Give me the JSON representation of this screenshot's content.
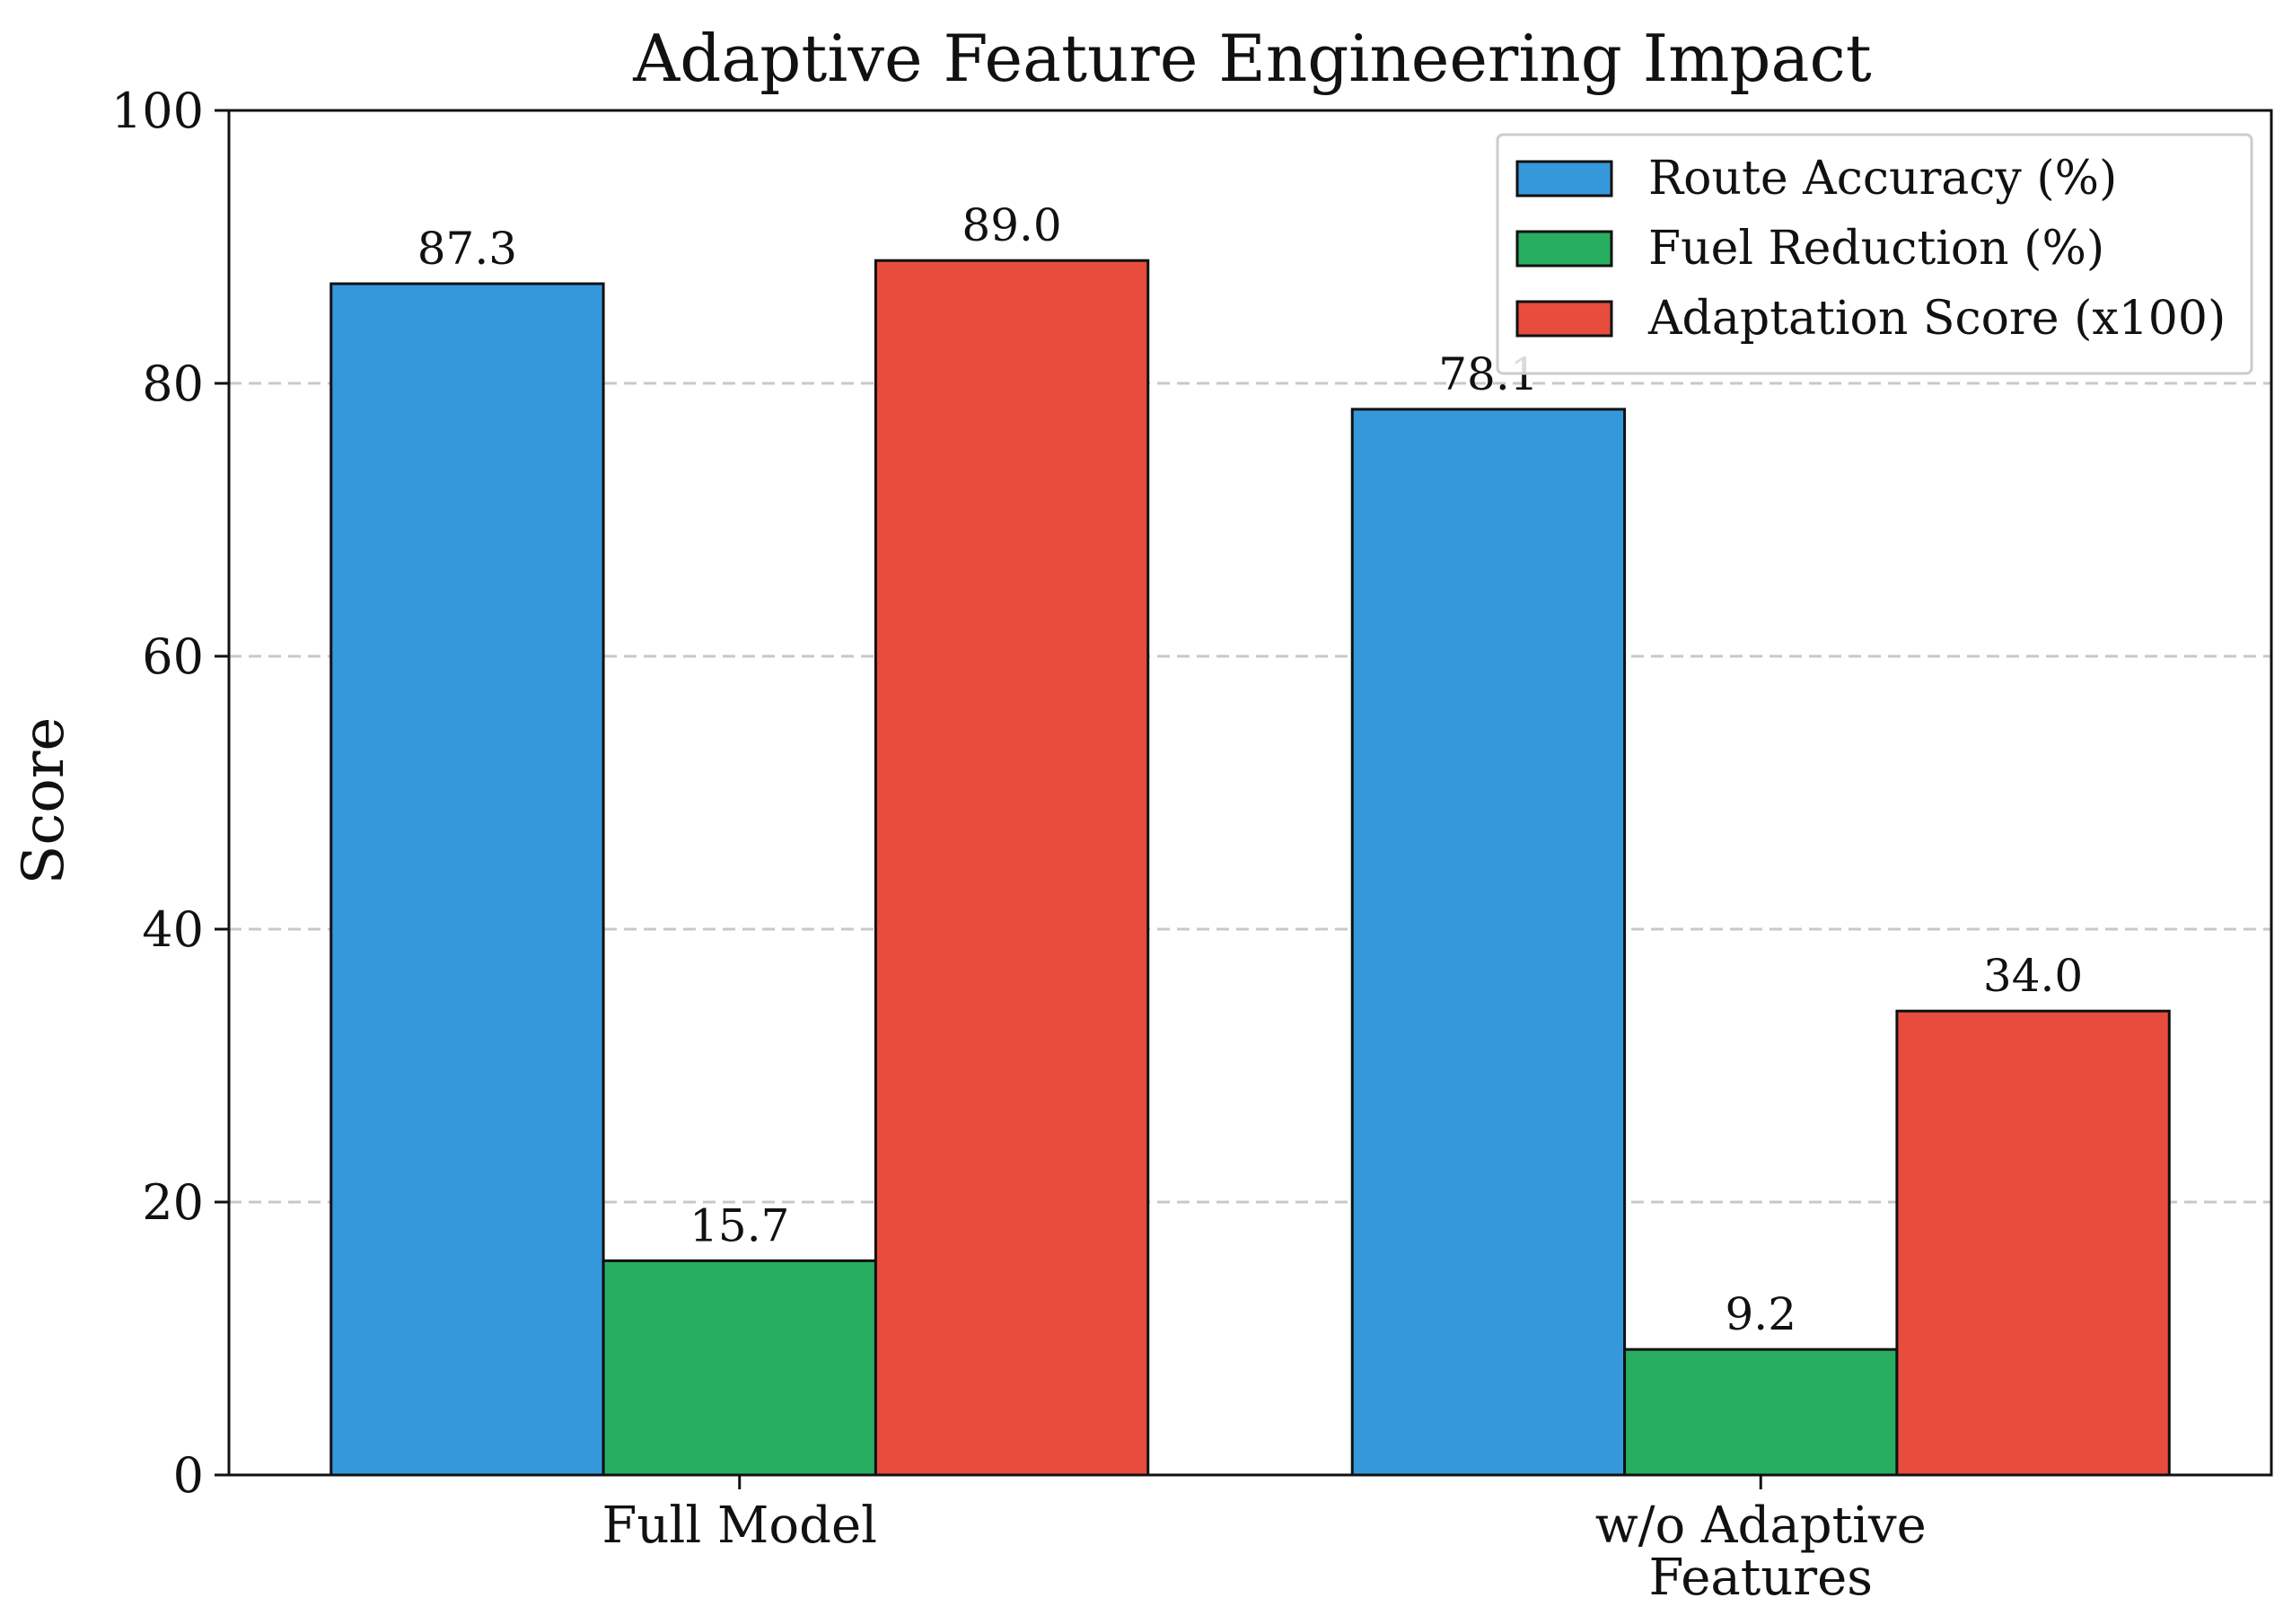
{
  "chart_data": {
    "type": "bar",
    "title": "Adaptive Feature Engineering Impact",
    "xlabel": "",
    "ylabel": "Score",
    "ylim": [
      0,
      100
    ],
    "yticks": [
      "0",
      "20",
      "40",
      "60",
      "80",
      "100"
    ],
    "grid": "y-dashed",
    "legend_position": "top-right",
    "categories": [
      [
        "Full Model"
      ],
      [
        "w/o Adaptive",
        "Features"
      ]
    ],
    "series": [
      {
        "name": "Route Accuracy (%)",
        "color": "#3598db",
        "values": [
          87.3,
          78.1
        ],
        "labels": [
          "87.3",
          "78.1"
        ]
      },
      {
        "name": "Fuel Reduction (%)",
        "color": "#27ae60",
        "values": [
          15.7,
          9.2
        ],
        "labels": [
          "15.7",
          "9.2"
        ]
      },
      {
        "name": "Adaptation Score (x100)",
        "color": "#e74c3c",
        "values": [
          89.0,
          34.0
        ],
        "labels": [
          "89.0",
          "34.0"
        ]
      }
    ]
  }
}
